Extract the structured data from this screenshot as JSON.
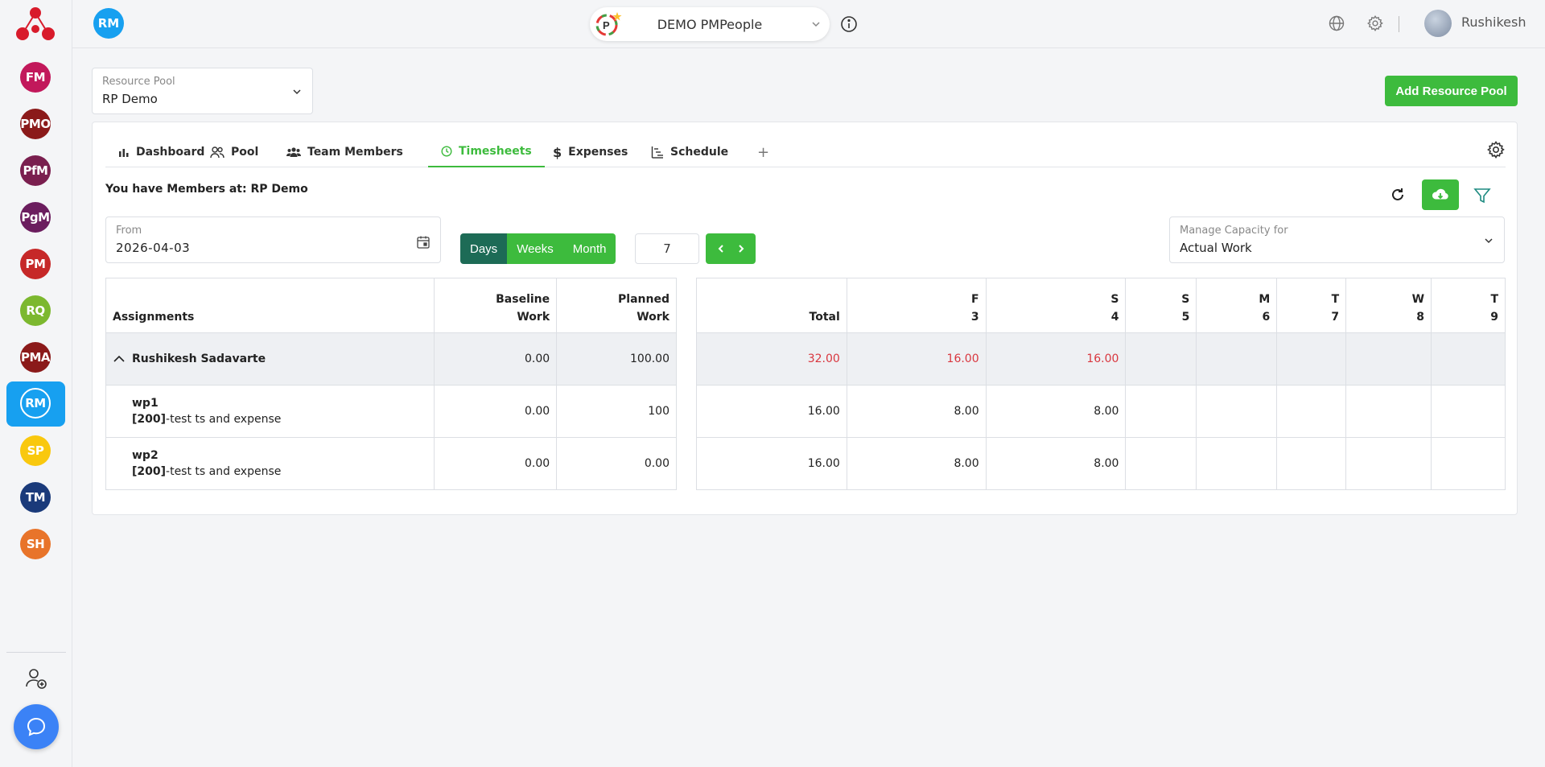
{
  "sidebar": {
    "modules": [
      {
        "label": "FM",
        "color": "#c2185b"
      },
      {
        "label": "PMO",
        "color": "#8b1a1a"
      },
      {
        "label": "PfM",
        "color": "#7a1f4f"
      },
      {
        "label": "PgM",
        "color": "#6b1d5e"
      },
      {
        "label": "PM",
        "color": "#c62828"
      },
      {
        "label": "RQ",
        "color": "#7cb82f"
      },
      {
        "label": "PMA",
        "color": "#8b1a1a"
      },
      {
        "label": "RM",
        "color": "#17a0f0"
      },
      {
        "label": "SP",
        "color": "#f9c80e"
      },
      {
        "label": "TM",
        "color": "#1a3a7a"
      },
      {
        "label": "SH",
        "color": "#e8742a"
      }
    ]
  },
  "header": {
    "module_avatar": "RM",
    "org_name": "DEMO PMPeople",
    "user_name": "Rushikesh"
  },
  "resource_pool": {
    "label": "Resource Pool",
    "value": "RP Demo",
    "add_button": "Add Resource Pool"
  },
  "tabs": [
    {
      "label": "Dashboard"
    },
    {
      "label": "Pool"
    },
    {
      "label": "Team Members"
    },
    {
      "label": "Timesheets"
    },
    {
      "label": "Expenses"
    },
    {
      "label": "Schedule"
    },
    {
      "label": "+"
    }
  ],
  "timesheets": {
    "members_at": "You have Members at: RP Demo",
    "from_label": "From",
    "from_value": "2026-04-03",
    "view_options": [
      "Days",
      "Weeks",
      "Month"
    ],
    "selected_view": "Days",
    "count": "7",
    "capacity_label": "Manage Capacity for",
    "capacity_value": "Actual Work"
  },
  "assignments_table": {
    "headers": {
      "assignments": "Assignments",
      "baseline_1": "Baseline",
      "baseline_2": "Work",
      "planned_1": "Planned",
      "planned_2": "Work"
    },
    "group": {
      "name": "Rushikesh Sadavarte",
      "baseline": "0.00",
      "planned": "100.00"
    },
    "rows": [
      {
        "name": "wp1",
        "code": "[200]",
        "desc": "-test ts and expense",
        "baseline": "0.00",
        "planned": "100"
      },
      {
        "name": "wp2",
        "code": "[200]",
        "desc": "-test ts and expense",
        "baseline": "0.00",
        "planned": "0.00"
      }
    ]
  },
  "days_table": {
    "total_label": "Total",
    "days": [
      {
        "dow": "F",
        "date": "3"
      },
      {
        "dow": "S",
        "date": "4"
      },
      {
        "dow": "S",
        "date": "5"
      },
      {
        "dow": "M",
        "date": "6"
      },
      {
        "dow": "T",
        "date": "7"
      },
      {
        "dow": "W",
        "date": "8"
      },
      {
        "dow": "T",
        "date": "9"
      }
    ],
    "group": {
      "total": "32.00",
      "values": [
        "16.00",
        "16.00",
        "",
        "",
        "",
        "",
        ""
      ]
    },
    "rows": [
      {
        "total": "16.00",
        "values": [
          "8.00",
          "8.00",
          "",
          "",
          "",
          "",
          ""
        ]
      },
      {
        "total": "16.00",
        "values": [
          "8.00",
          "8.00",
          "",
          "",
          "",
          "",
          ""
        ]
      }
    ]
  }
}
